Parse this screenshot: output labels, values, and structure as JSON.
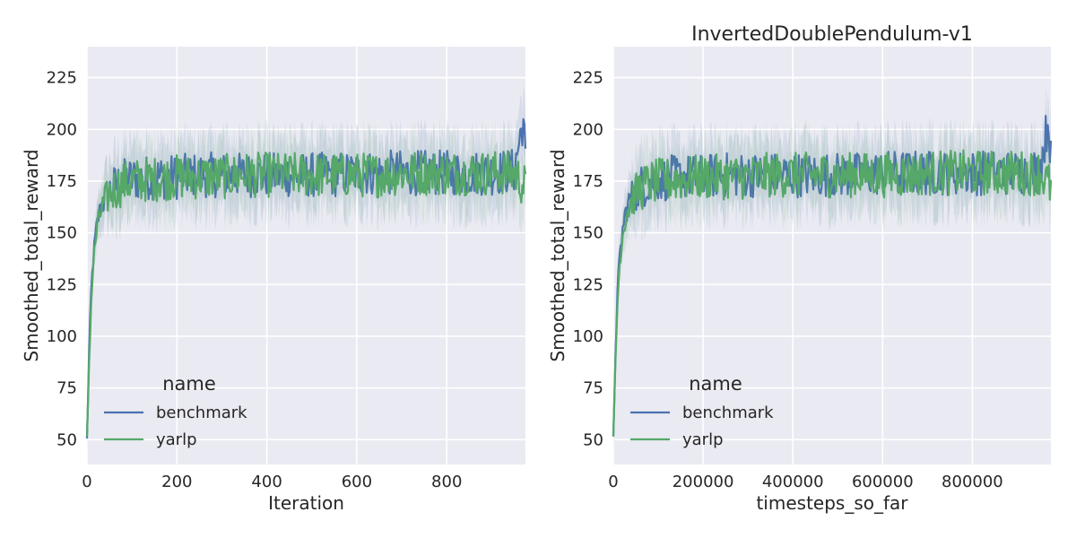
{
  "chart_data": [
    {
      "type": "line",
      "title": "",
      "xlabel": "Iteration",
      "ylabel": "Smoothed_total_reward",
      "xlim": [
        0,
        975
      ],
      "ylim": [
        38,
        240
      ],
      "xticks": [
        0,
        200,
        400,
        600,
        800
      ],
      "xtick_labels": [
        "0",
        "200",
        "400",
        "600",
        "800"
      ],
      "yticks": [
        50,
        75,
        100,
        125,
        150,
        175,
        200,
        225
      ],
      "ytick_labels": [
        "50",
        "75",
        "100",
        "125",
        "150",
        "175",
        "200",
        "225"
      ],
      "grid": true,
      "legend": {
        "title": "name",
        "placement": "lower-left",
        "entries": [
          "benchmark",
          "yarlp"
        ]
      },
      "series": [
        {
          "name": "benchmark",
          "color": "#4c72b0",
          "x": [
            0,
            5,
            10,
            15,
            20,
            25,
            30,
            40,
            50,
            60,
            80,
            100,
            150,
            200,
            250,
            300,
            350,
            400,
            450,
            500,
            550,
            600,
            650,
            700,
            750,
            800,
            850,
            900,
            950,
            970,
            975
          ],
          "y": [
            50,
            95,
            125,
            140,
            150,
            157,
            162,
            167,
            170,
            172,
            175,
            176,
            177,
            177,
            178,
            178,
            178,
            178,
            178,
            178,
            178,
            179,
            179,
            179,
            179,
            179,
            179,
            179,
            180,
            205,
            185
          ]
        },
        {
          "name": "yarlp",
          "color": "#55a868",
          "x": [
            0,
            5,
            10,
            15,
            20,
            25,
            30,
            40,
            50,
            60,
            80,
            100,
            150,
            200,
            250,
            300,
            350,
            400,
            450,
            500,
            550,
            600,
            650,
            700,
            750,
            800,
            850,
            900,
            950,
            975
          ],
          "y": [
            50,
            90,
            120,
            138,
            148,
            155,
            160,
            165,
            169,
            171,
            174,
            175,
            176,
            177,
            177,
            177,
            178,
            178,
            178,
            178,
            178,
            178,
            178,
            179,
            179,
            179,
            179,
            179,
            179,
            172
          ]
        }
      ]
    },
    {
      "type": "line",
      "title": "InvertedDoublePendulum-v1",
      "xlabel": "timesteps_so_far",
      "ylabel": "Smoothed_total_reward",
      "xlim": [
        0,
        975000
      ],
      "ylim": [
        38,
        240
      ],
      "xticks": [
        0,
        200000,
        400000,
        600000,
        800000
      ],
      "xtick_labels": [
        "0",
        "200000",
        "400000",
        "600000",
        "800000"
      ],
      "yticks": [
        50,
        75,
        100,
        125,
        150,
        175,
        200,
        225
      ],
      "ytick_labels": [
        "50",
        "75",
        "100",
        "125",
        "150",
        "175",
        "200",
        "225"
      ],
      "grid": true,
      "legend": {
        "title": "name",
        "placement": "lower-left",
        "entries": [
          "benchmark",
          "yarlp"
        ]
      },
      "series": [
        {
          "name": "benchmark",
          "color": "#4c72b0",
          "x": [
            0,
            5000,
            10000,
            15000,
            20000,
            25000,
            30000,
            40000,
            50000,
            60000,
            80000,
            100000,
            150000,
            200000,
            250000,
            300000,
            350000,
            400000,
            450000,
            500000,
            550000,
            600000,
            650000,
            700000,
            750000,
            800000,
            850000,
            900000,
            950000,
            970000,
            975000
          ],
          "y": [
            50,
            95,
            125,
            140,
            150,
            157,
            162,
            167,
            170,
            172,
            175,
            176,
            177,
            177,
            178,
            178,
            178,
            178,
            178,
            178,
            178,
            179,
            179,
            179,
            179,
            179,
            179,
            179,
            180,
            205,
            185
          ]
        },
        {
          "name": "yarlp",
          "color": "#55a868",
          "x": [
            0,
            5000,
            10000,
            15000,
            20000,
            25000,
            30000,
            40000,
            50000,
            60000,
            80000,
            100000,
            150000,
            200000,
            250000,
            300000,
            350000,
            400000,
            450000,
            500000,
            550000,
            600000,
            650000,
            700000,
            750000,
            800000,
            850000,
            900000,
            950000,
            975000
          ],
          "y": [
            50,
            90,
            120,
            138,
            148,
            155,
            160,
            165,
            169,
            171,
            174,
            175,
            176,
            177,
            177,
            177,
            178,
            178,
            178,
            178,
            178,
            178,
            178,
            179,
            179,
            179,
            179,
            179,
            179,
            172
          ]
        }
      ]
    }
  ],
  "colors": {
    "plot_background": "#eaeaf2",
    "grid": "#ffffff",
    "figure_background": "#ffffff"
  }
}
